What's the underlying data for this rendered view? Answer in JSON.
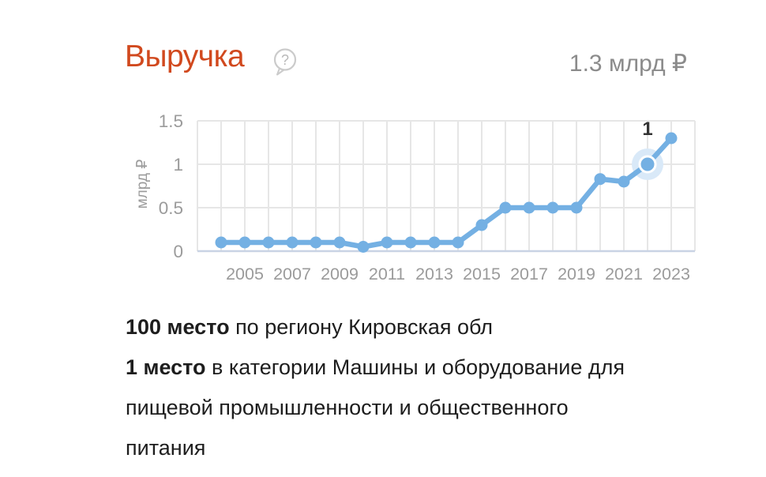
{
  "header": {
    "title": "Выручка",
    "help_glyph": "?",
    "total_value": "1.3 млрд ₽"
  },
  "chart_data": {
    "type": "line",
    "title": "Выручка",
    "ylabel": "млрд ₽",
    "x": [
      2004,
      2005,
      2006,
      2007,
      2008,
      2009,
      2010,
      2011,
      2012,
      2013,
      2014,
      2015,
      2016,
      2017,
      2018,
      2019,
      2020,
      2021,
      2022,
      2023
    ],
    "values": [
      0.1,
      0.1,
      0.1,
      0.1,
      0.1,
      0.1,
      0.05,
      0.1,
      0.1,
      0.1,
      0.1,
      0.3,
      0.5,
      0.5,
      0.5,
      0.5,
      0.83,
      0.8,
      1,
      1.3
    ],
    "x_ticks": [
      2005,
      2007,
      2009,
      2011,
      2013,
      2015,
      2017,
      2019,
      2021,
      2023
    ],
    "y_ticks": [
      0,
      0.5,
      1,
      1.5
    ],
    "y_tick_labels": [
      "0",
      "0.5",
      "1",
      "1.5"
    ],
    "xlim": [
      2003,
      2024
    ],
    "ylim": [
      0,
      1.5
    ],
    "grid": true,
    "legend": false,
    "highlighted_index": 18,
    "highlighted_label": "1",
    "colors": {
      "line": "#74b0e3",
      "halo": "#d9e9f8",
      "grid": "#e6e6e6",
      "axis_line": "#c9d3e4",
      "tick": "#9b9b9b",
      "annotation": "#333333",
      "title_accent": "#d1491e",
      "total_text": "#8b8b8b",
      "body_text": "#1d1d1d"
    }
  },
  "rankings": [
    {
      "prefix": "100 место",
      "rest": " по региону Кировская обл"
    },
    {
      "prefix": "1 место",
      "rest": " в категории Машины и оборудование для"
    },
    {
      "prefix": "",
      "rest": "пищевой промышленности и общественного"
    },
    {
      "prefix": "",
      "rest": "питания"
    }
  ]
}
